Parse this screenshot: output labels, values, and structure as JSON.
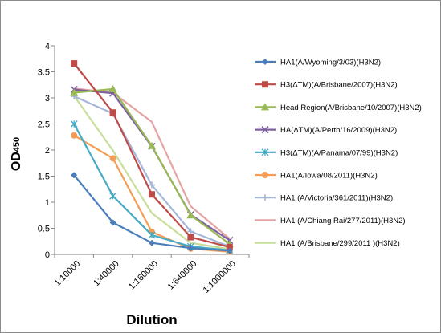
{
  "chart_data": {
    "type": "line",
    "categories": [
      "1:10000",
      "1:40000",
      "1:160000",
      "1:640000",
      "1:1000000"
    ],
    "xlabel": "Dilution",
    "ylabel": "OD",
    "ylabel_sub": "450",
    "ylim": [
      0,
      4
    ],
    "yticks": [
      "0",
      "0.5",
      "1",
      "1.5",
      "2",
      "2.5",
      "3",
      "3.5",
      "4"
    ],
    "grid": false,
    "legend": "right",
    "series": [
      {
        "name": "HA1(A/Wyoming/3/03)(H3N2)",
        "color": "#4a7ebb",
        "marker": "diamond",
        "values": [
          1.52,
          0.61,
          0.22,
          0.12,
          0.07
        ]
      },
      {
        "name": "H3(ΔTM)(A/Brisbane/2007)(H3N2)",
        "color": "#be4b48",
        "marker": "square",
        "values": [
          3.66,
          2.72,
          1.15,
          0.33,
          0.14
        ]
      },
      {
        "name": "Head Region(A/Brisbane/10/2007)(H3N2)",
        "color": "#98b954",
        "marker": "triangle",
        "values": [
          3.1,
          3.17,
          2.08,
          0.75,
          0.2
        ]
      },
      {
        "name": "HA(ΔTM)(A/Perth/16/2009)(H3N2)",
        "color": "#7d60a0",
        "marker": "x",
        "values": [
          3.16,
          3.09,
          2.07,
          0.76,
          0.27
        ]
      },
      {
        "name": "H3(ΔTM)(A/Panama/07/99)(H3N2)",
        "color": "#46aac4",
        "marker": "star",
        "values": [
          2.5,
          1.12,
          0.37,
          0.15,
          0.08
        ]
      },
      {
        "name": "HA1(A/Iowa/08/2011)(H3N2)",
        "color": "#f59d56",
        "marker": "circle",
        "values": [
          2.28,
          1.84,
          0.43,
          0.11,
          0.05
        ]
      },
      {
        "name": "HA1 (A/Victoria/361/2011)(H3N2)",
        "color": "#a5b6d9",
        "marker": "plus",
        "values": [
          3.03,
          2.7,
          1.33,
          0.44,
          0.15
        ]
      },
      {
        "name": "HA1 (A/Chiang Rai/277/2011)(H3N2)",
        "color": "#e6a3a4",
        "marker": "none",
        "values": [
          3.18,
          3.1,
          2.54,
          0.92,
          0.3
        ]
      },
      {
        "name": "HA1 (A/Brisbane/299/2011 )(H3N2)",
        "color": "#c7dd9a",
        "marker": "none",
        "values": [
          3.04,
          1.99,
          0.79,
          0.22,
          0.1
        ]
      }
    ]
  }
}
